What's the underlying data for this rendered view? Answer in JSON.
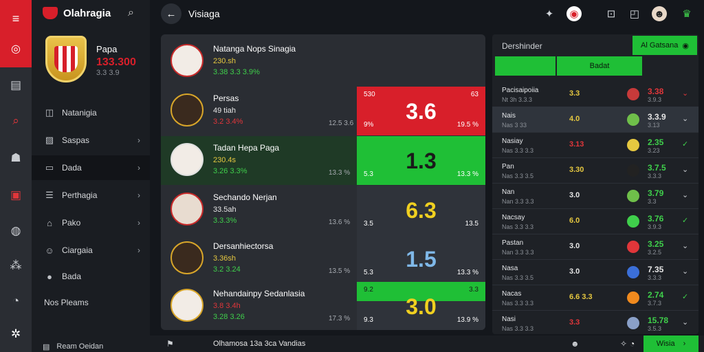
{
  "brand": {
    "title": "Olahragia"
  },
  "topbar": {
    "title": "Visiaga"
  },
  "club": {
    "name": "Papa",
    "number": "133.300",
    "sub": "3.3 3.9"
  },
  "nav": [
    {
      "label": "Natanigia",
      "chev": false
    },
    {
      "label": "Saspas",
      "chev": true
    },
    {
      "label": "Dada",
      "chev": true
    },
    {
      "label": "Perthagia",
      "chev": true
    },
    {
      "label": "Pako",
      "chev": true
    },
    {
      "label": "Ciargaia",
      "chev": true
    },
    {
      "label": "Bada",
      "chev": false
    },
    {
      "label": "Nos Pleams",
      "chev": false
    }
  ],
  "side_footer": "Ream Oeidan",
  "matches": [
    {
      "title": "Natanga Nops Sinagia",
      "a": "230.sh",
      "b": "3.38 3.3 3.9%",
      "pct": "",
      "odds": "",
      "odd_left": "",
      "odd_right": "",
      "corner_left": "",
      "corner_right": ""
    },
    {
      "title": "Persas",
      "a": "49 tiah",
      "b": "3.2 3.4%",
      "pct": "12.5 3.6",
      "odds": "3.6",
      "odd_left": "9%",
      "odd_right": "19.5 %",
      "corner_left": "530",
      "corner_right": "63"
    },
    {
      "title": "Tadan Hepa Paga",
      "a": "230.4s",
      "b": "3.26 3.3%",
      "pct": "13.3 %",
      "odds": "1.3",
      "odd_left": "5.3",
      "odd_right": "13.3 %",
      "corner_left": "",
      "corner_right": ""
    },
    {
      "title": "Sechando Nerjan",
      "a": "33.5ah",
      "b": "3.3.3%",
      "pct": "13.6 %",
      "odds": "6.3",
      "odd_left": "3.5",
      "odd_right": "13.5",
      "corner_left": "",
      "corner_right": ""
    },
    {
      "title": "Dersanhiectorsa",
      "a": "3.36sh",
      "b": "3.2 3.24",
      "pct": "13.5 %",
      "odds": "1.5",
      "odd_left": "5.3",
      "odd_right": "13.3 %",
      "corner_left": "",
      "corner_right": ""
    },
    {
      "title": "Nehandainpy Sedanlasia",
      "a": "3.8 3.4h",
      "b": "3.28 3.26",
      "pct": "17.3 %",
      "odds": "3.0",
      "odd_left": "9.3",
      "odd_right": "13.9 %",
      "corner_left": "9.2",
      "corner_right": "3.3"
    }
  ],
  "right_panel": {
    "header": "Dershinder",
    "button": "Al Gatsana",
    "tab": "Badat",
    "rows": [
      {
        "t1": "Pacisaipoiia",
        "t2": "Nt 3h 3.3.3",
        "mid": "3.3",
        "mid_color": "#e6c840",
        "dot": "#c73a3a",
        "val": "3.38",
        "val_color": "#e0363a",
        "val2": "3.9.3",
        "chev_color": "#e0363a",
        "chev": "⌄"
      },
      {
        "t1": "Nais",
        "t2": "Nas 3 33",
        "mid": "4.0",
        "mid_color": "#e6c840",
        "dot": "#6fbf4a",
        "val": "3.3.9",
        "val_color": "#e6e6e6",
        "val2": "3.13",
        "chev_color": "#cfd2d6",
        "chev": "⌄"
      },
      {
        "t1": "Nasiay",
        "t2": "Nas 3.3 3.3",
        "mid": "3.13",
        "mid_color": "#e0363a",
        "dot": "#e6c840",
        "val": "2.35",
        "val_color": "#3fcf4b",
        "val2": "3.23",
        "chev_color": "#3fcf4b",
        "chev": "✓"
      },
      {
        "t1": "Pan",
        "t2": "Nas 3.3 3.5",
        "mid": "3.30",
        "mid_color": "#e6c840",
        "dot": "#222",
        "val": "3.7.5",
        "val_color": "#3fcf4b",
        "val2": "3.3.3",
        "chev_color": "#cfd2d6",
        "chev": "⌄"
      },
      {
        "t1": "Nan",
        "t2": "Nan 3.3 3.3",
        "mid": "3.0",
        "mid_color": "#e6e6e6",
        "dot": "#6fbf4a",
        "val": "3.79",
        "val_color": "#3fcf4b",
        "val2": "3.3",
        "chev_color": "#cfd2d6",
        "chev": "⌄"
      },
      {
        "t1": "Nacsay",
        "t2": "Nas 3.3 3.3",
        "mid": "6.0",
        "mid_color": "#e6c840",
        "dot": "#3fcf4b",
        "val": "3.76",
        "val_color": "#3fcf4b",
        "val2": "3.9.3",
        "chev_color": "#3fcf4b",
        "chev": "✓"
      },
      {
        "t1": "Pastan",
        "t2": "Nan 3.3 3.3",
        "mid": "3.0",
        "mid_color": "#e6e6e6",
        "dot": "#e0363a",
        "val": "3.25",
        "val_color": "#3fcf4b",
        "val2": "3.2.5",
        "chev_color": "#cfd2d6",
        "chev": "⌄"
      },
      {
        "t1": "Nasa",
        "t2": "Nas 3.3 3.5",
        "mid": "3.0",
        "mid_color": "#e6e6e6",
        "dot": "#3b6fd8",
        "val": "7.35",
        "val_color": "#e6e6e6",
        "val2": "3.3.3",
        "chev_color": "#cfd2d6",
        "chev": "⌄"
      },
      {
        "t1": "Nacas",
        "t2": "Nas 3.3 3.3",
        "mid": "6.6 3.3",
        "mid_color": "#e6c840",
        "dot": "#f08a1e",
        "val": "2.74",
        "val_color": "#3fcf4b",
        "val2": "3.7.3",
        "chev_color": "#3fcf4b",
        "chev": "✓"
      },
      {
        "t1": "Nasi",
        "t2": "Nas 3.3 3.3",
        "mid": "3.3",
        "mid_color": "#e0363a",
        "dot": "#8aa0c8",
        "val": "15.78",
        "val_color": "#3fcf4b",
        "val2": "3.5.3",
        "chev_color": "#cfd2d6",
        "chev": "⌄"
      }
    ]
  },
  "bottom": {
    "text": "Olhamosa 13a 3ca Vandias",
    "button": "Wisia"
  }
}
